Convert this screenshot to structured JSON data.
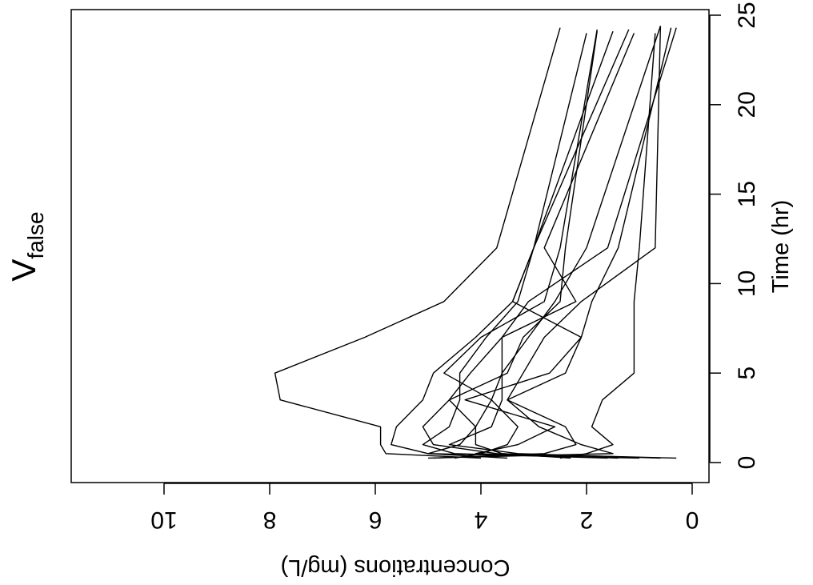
{
  "chart_data": {
    "type": "line",
    "title": {
      "main": "V",
      "subscript": "false"
    },
    "xlabel": "Time (hr)",
    "ylabel": "Concentrations (mg/L)",
    "xlim": [
      -1,
      26
    ],
    "ylim": [
      0,
      12
    ],
    "xticks": [
      0,
      5,
      10,
      15,
      20,
      25
    ],
    "yticks": [
      0,
      2,
      4,
      6,
      8,
      10
    ],
    "xtick_labels": [
      "0",
      "5",
      "10",
      "15",
      "20",
      "25"
    ],
    "ytick_labels": [
      "0",
      "2",
      "4",
      "6",
      "8",
      "10"
    ],
    "grid": false,
    "legend": "none",
    "line_color": "#000000",
    "series": [
      {
        "x": [
          0.25,
          0.5,
          1,
          2,
          3.5,
          5,
          7,
          9,
          12,
          24.3
        ],
        "y": [
          4.0,
          5.8,
          5.9,
          5.9,
          7.8,
          7.9,
          6.2,
          4.7,
          3.7,
          2.5
        ]
      },
      {
        "x": [
          0.25,
          0.5,
          1,
          2,
          3.5,
          5,
          7,
          9,
          12,
          24.2
        ],
        "y": [
          1.0,
          5.0,
          5.7,
          5.6,
          5.1,
          4.9,
          4.1,
          3.4,
          3.0,
          1.2
        ]
      },
      {
        "x": [
          0.25,
          0.5,
          1,
          2,
          3.5,
          5,
          7,
          9,
          12,
          24.0
        ],
        "y": [
          0.3,
          3.7,
          4.9,
          5.1,
          4.6,
          4.2,
          3.6,
          2.2,
          2.8,
          1.1
        ]
      },
      {
        "x": [
          0.25,
          0.5,
          1,
          2,
          3.5,
          5,
          7,
          9,
          12,
          24.1
        ],
        "y": [
          1.6,
          4.5,
          5.1,
          4.6,
          4.4,
          4.4,
          3.9,
          3.3,
          3.0,
          1.5
        ]
      },
      {
        "x": [
          0.25,
          0.5,
          1,
          2,
          3.5,
          5,
          7,
          9,
          12,
          24.4
        ],
        "y": [
          3.5,
          5.0,
          4.4,
          4.1,
          3.8,
          3.6,
          3.1,
          2.6,
          2.0,
          0.6
        ]
      },
      {
        "x": [
          0.25,
          0.5,
          1,
          2,
          3.5,
          5,
          7,
          9,
          12,
          24.3
        ],
        "y": [
          5.0,
          1.5,
          2.1,
          2.9,
          3.5,
          2.4,
          2.1,
          1.9,
          1.4,
          0.4
        ]
      },
      {
        "x": [
          0.25,
          0.5,
          1,
          2,
          3.5,
          5,
          7,
          9,
          12,
          24.2
        ],
        "y": [
          4.5,
          4.0,
          3.5,
          3.3,
          3.8,
          4.7,
          4.0,
          2.8,
          2.5,
          1.8
        ]
      },
      {
        "x": [
          0.25,
          0.5,
          1,
          2,
          3.5,
          5,
          7,
          9,
          12,
          24.0
        ],
        "y": [
          2.5,
          2.0,
          1.5,
          1.9,
          1.7,
          1.1,
          1.1,
          1.1,
          1.0,
          0.7
        ]
      },
      {
        "x": [
          0.25,
          0.5,
          1,
          2,
          3.5,
          5,
          7,
          9,
          12,
          24.3
        ],
        "y": [
          0.6,
          3.3,
          4.6,
          3.8,
          3.6,
          3.6,
          3.6,
          3.1,
          1.6,
          0.3
        ]
      },
      {
        "x": [
          0.25,
          0.5,
          1,
          2,
          3.5,
          5,
          7,
          9,
          12,
          24.4
        ],
        "y": [
          4.9,
          2.8,
          2.2,
          2.4,
          3.5,
          3.2,
          2.8,
          2.1,
          0.7,
          0.6
        ]
      },
      {
        "x": [
          0.25,
          0.5,
          1,
          2,
          3.5,
          5,
          7,
          9,
          12,
          24.1
        ],
        "y": [
          2.3,
          3.6,
          4.1,
          4.1,
          4.6,
          3.5,
          3.2,
          2.5,
          2.4,
          1.8
        ]
      },
      {
        "x": [
          0.25,
          0.5,
          1,
          2,
          3.5,
          5,
          7,
          9,
          12,
          24.0
        ],
        "y": [
          1.4,
          4.1,
          3.3,
          2.6,
          4.3,
          2.7,
          2.1,
          3.4,
          3.0,
          2.0
        ]
      }
    ]
  }
}
